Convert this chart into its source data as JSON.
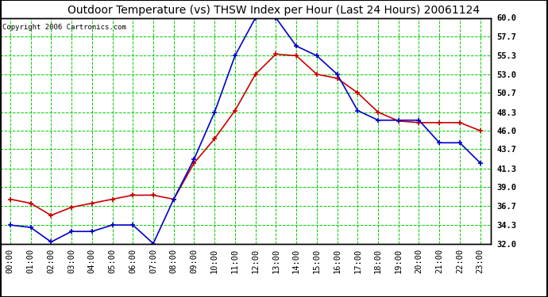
{
  "title": "Outdoor Temperature (vs) THSW Index per Hour (Last 24 Hours) 20061124",
  "copyright": "Copyright 2006 Cartronics.com",
  "hours": [
    "00:00",
    "01:00",
    "02:00",
    "03:00",
    "04:00",
    "05:00",
    "06:00",
    "07:00",
    "08:00",
    "09:00",
    "10:00",
    "11:00",
    "12:00",
    "13:00",
    "14:00",
    "15:00",
    "16:00",
    "17:00",
    "18:00",
    "19:00",
    "20:00",
    "21:00",
    "22:00",
    "23:00"
  ],
  "outdoor_temp": [
    37.5,
    37.0,
    35.5,
    36.5,
    37.0,
    37.5,
    38.0,
    38.0,
    37.5,
    42.0,
    45.0,
    48.5,
    53.0,
    55.5,
    55.3,
    53.0,
    52.5,
    50.7,
    48.3,
    47.2,
    47.0,
    47.0,
    47.0,
    46.0
  ],
  "thsw_index": [
    34.3,
    34.0,
    32.2,
    33.5,
    33.5,
    34.3,
    34.3,
    32.0,
    37.5,
    42.5,
    48.3,
    55.3,
    60.0,
    60.0,
    56.5,
    55.3,
    53.0,
    48.5,
    47.3,
    47.3,
    47.3,
    44.5,
    44.5,
    42.0
  ],
  "ylim": [
    32.0,
    60.0
  ],
  "yticks": [
    32.0,
    34.3,
    36.7,
    39.0,
    41.3,
    43.7,
    46.0,
    48.3,
    50.7,
    53.0,
    55.3,
    57.7,
    60.0
  ],
  "temp_color": "#cc0000",
  "thsw_color": "#0000cc",
  "bg_color": "#ffffff",
  "grid_color": "#00cc00",
  "title_fontsize": 10,
  "copyright_fontsize": 6.5,
  "axis_fontsize": 7.5
}
